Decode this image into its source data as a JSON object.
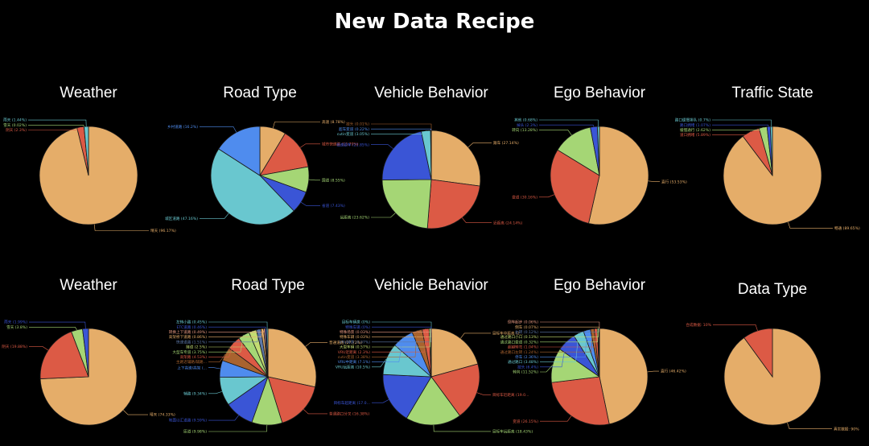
{
  "title": "New Data Recipe",
  "colors": {
    "orange": "#e5ad69",
    "red": "#dc5a45",
    "green": "#a5d675",
    "blue": "#3a55d6",
    "teal": "#69c7cf",
    "lightblue": "#4f8cee",
    "brown": "#a9632f",
    "pink": "#e89a82",
    "lime": "#c3dc72",
    "slate": "#5d78a8"
  },
  "chart_data": [
    {
      "type": "pie",
      "title": "Weather",
      "slices": [
        {
          "label": "晴天 (96.17%)",
          "value": 96.17,
          "color": "orange"
        },
        {
          "label": "阴天 (2.3%)",
          "value": 2.3,
          "color": "red"
        },
        {
          "label": "雪天 (0.02%)",
          "value": 0.02,
          "color": "green"
        },
        {
          "label": "雨天 (1.44%)",
          "value": 1.44,
          "color": "teal"
        }
      ]
    },
    {
      "type": "pie",
      "title": "Road Type",
      "slices": [
        {
          "label": "高速 (8.78%)",
          "value": 8.78,
          "color": "orange"
        },
        {
          "label": "城市快速路 (13.79%)",
          "value": 13.79,
          "color": "red"
        },
        {
          "label": "国道 (8.55%)",
          "value": 8.55,
          "color": "green"
        },
        {
          "label": "省道 (7.43%)",
          "value": 7.43,
          "color": "blue"
        },
        {
          "label": "城区道路 (47.16%)",
          "value": 47.16,
          "color": "teal"
        },
        {
          "label": "乡村道路 (16.2%)",
          "value": 16.2,
          "color": "lightblue"
        }
      ]
    },
    {
      "type": "pie",
      "title": "Vehicle Behavior",
      "slices": [
        {
          "label": "跟车 (27.14%)",
          "value": 27.14,
          "color": "orange"
        },
        {
          "label": "近距离 (24.14%)",
          "value": 24.14,
          "color": "red"
        },
        {
          "label": "远距离 (23.62%)",
          "value": 23.62,
          "color": "green"
        },
        {
          "label": "低速跟车 (21.85%)",
          "value": 21.85,
          "color": "blue"
        },
        {
          "label": "cutin变道 (3.05%)",
          "value": 3.05,
          "color": "teal"
        },
        {
          "label": "超车变道 (0.22%)",
          "value": 0.22,
          "color": "lightblue"
        },
        {
          "label": "掉头 (0.01%)",
          "value": 0.01,
          "color": "brown"
        }
      ]
    },
    {
      "type": "pie",
      "title": "Ego Behavior",
      "slices": [
        {
          "label": "直行 (53.53%)",
          "value": 53.53,
          "color": "orange"
        },
        {
          "label": "变道 (30.16%)",
          "value": 30.16,
          "color": "red"
        },
        {
          "label": "转向 (13.28%)",
          "value": 13.28,
          "color": "green"
        },
        {
          "label": "掉头 (2.3%)",
          "value": 2.3,
          "color": "blue"
        },
        {
          "label": "其他 (0.68%)",
          "value": 0.68,
          "color": "teal"
        }
      ]
    },
    {
      "type": "pie",
      "title": "Traffic State",
      "slices": [
        {
          "label": "畅通 (89.65%)",
          "value": 89.65,
          "color": "orange"
        },
        {
          "label": "道口拥堵 (5.89%)",
          "value": 5.89,
          "color": "red"
        },
        {
          "label": "缓慢通行 (2.62%)",
          "value": 2.62,
          "color": "green"
        },
        {
          "label": "路口拥堵 (1.07%)",
          "value": 1.07,
          "color": "blue"
        },
        {
          "label": "路口缓慢排队 (0.7%)",
          "value": 0.7,
          "color": "teal"
        }
      ]
    },
    {
      "type": "pie",
      "title": "Weather",
      "slices": [
        {
          "label": "晴天 (74.33%)",
          "value": 74.33,
          "color": "orange"
        },
        {
          "label": "阴天 (19.88%)",
          "value": 19.88,
          "color": "red"
        },
        {
          "label": "雪天 (3.8%)",
          "value": 3.8,
          "color": "green"
        },
        {
          "label": "雨天 (1.99%)",
          "value": 1.99,
          "color": "blue"
        }
      ]
    },
    {
      "type": "pie",
      "title": "Road Type",
      "slices": [
        {
          "label": "普通道路 (27.72%)",
          "value": 27.72,
          "color": "orange"
        },
        {
          "label": "普通路口分叉 (16.38%)",
          "value": 16.38,
          "color": "red"
        },
        {
          "label": "匝道 (9.98%)",
          "value": 9.98,
          "color": "green"
        },
        {
          "label": "地面以汇道路 (9.59%)",
          "value": 9.59,
          "color": "blue"
        },
        {
          "label": "辅路 (9.34%)",
          "value": 9.34,
          "color": "teal"
        },
        {
          "label": "上下高速/高架 (...",
          "value": 5.5,
          "color": "lightblue"
        },
        {
          "label": "主路近辅路/辅路...",
          "value": 4.5,
          "color": "brown"
        },
        {
          "label": "高架路 (4.53%)",
          "value": 4.53,
          "color": "red"
        },
        {
          "label": "大型车专道 (3.75%)",
          "value": 3.75,
          "color": "green"
        },
        {
          "label": "隧道 (2.5%)",
          "value": 2.5,
          "color": "lime"
        },
        {
          "label": "快速道路 (1.51%)",
          "value": 1.51,
          "color": "slate"
        },
        {
          "label": "高架桥下道路 (0.86%)",
          "value": 0.86,
          "color": "orange"
        },
        {
          "label": "转换上下道路 (0.49%)",
          "value": 0.49,
          "color": "pink"
        },
        {
          "label": "ETC道路 (0.46%)",
          "value": 0.46,
          "color": "blue"
        },
        {
          "label": "左转小路 (0.45%)",
          "value": 0.45,
          "color": "teal"
        }
      ]
    },
    {
      "type": "pie",
      "title": "Vehicle Behavior",
      "slices": [
        {
          "label": "目标车中距离 (2...",
          "value": 20.5,
          "color": "orange"
        },
        {
          "label": "目标车近距离 (19.0...",
          "value": 19.0,
          "color": "red"
        },
        {
          "label": "目标车远距离 (18.43%)",
          "value": 18.43,
          "color": "green"
        },
        {
          "label": "目标车超距离 (17.0...",
          "value": 17.0,
          "color": "blue"
        },
        {
          "label": "VRU远距离 (10.5%)",
          "value": 10.5,
          "color": "teal"
        },
        {
          "label": "VRU中距离 (7.1%)",
          "value": 7.1,
          "color": "lightblue"
        },
        {
          "label": "cutin变道 (3.38%)",
          "value": 3.38,
          "color": "brown"
        },
        {
          "label": "VRU近距离 (2.3%)",
          "value": 2.3,
          "color": "red"
        },
        {
          "label": "大型车辆 (0.57%)",
          "value": 0.57,
          "color": "lime"
        },
        {
          "label": "VRU特殊 (0.07%)",
          "value": 0.07,
          "color": "slate"
        },
        {
          "label": "特殊车辆 (0.03%)",
          "value": 0.03,
          "color": "orange"
        },
        {
          "label": "特殊场景 (0.03%)",
          "value": 0.03,
          "color": "pink"
        },
        {
          "label": "特殊车辆 (0%)",
          "value": 0.01,
          "color": "blue"
        },
        {
          "label": "目标车辆类 (0%)",
          "value": 0.01,
          "color": "teal"
        }
      ]
    },
    {
      "type": "pie",
      "title": "Ego Behavior",
      "slices": [
        {
          "label": "直行 (46.42%)",
          "value": 46.42,
          "color": "orange"
        },
        {
          "label": "变道 (26.15%)",
          "value": 26.15,
          "color": "red"
        },
        {
          "label": "转向 (11.52%)",
          "value": 11.52,
          "color": "green"
        },
        {
          "label": "掉头 (6.4%)",
          "value": 6.4,
          "color": "blue"
        },
        {
          "label": "通过路口 (3.48%)",
          "value": 3.48,
          "color": "teal"
        },
        {
          "label": "停车 (2.36%)",
          "value": 2.36,
          "color": "lightblue"
        },
        {
          "label": "通过路口左转 (1.24%)",
          "value": 1.24,
          "color": "brown"
        },
        {
          "label": "超越转弯 (1.04%)",
          "value": 1.04,
          "color": "red"
        },
        {
          "label": "通过路口变道 (0.32%)",
          "value": 0.32,
          "color": "green"
        },
        {
          "label": "通过路口小口 (0.13%)",
          "value": 0.13,
          "color": "lime"
        },
        {
          "label": "左转 (0.12%)",
          "value": 0.12,
          "color": "slate"
        },
        {
          "label": "倒车 (0.07%)",
          "value": 0.07,
          "color": "orange"
        },
        {
          "label": "倒车起步 (0.06%)",
          "value": 0.06,
          "color": "pink"
        }
      ]
    },
    {
      "type": "pie",
      "title": "Data Type",
      "slices": [
        {
          "label": "真实数据: 90%",
          "value": 90,
          "color": "orange"
        },
        {
          "label": "合成数据: 10%",
          "value": 10,
          "color": "red"
        }
      ]
    }
  ]
}
